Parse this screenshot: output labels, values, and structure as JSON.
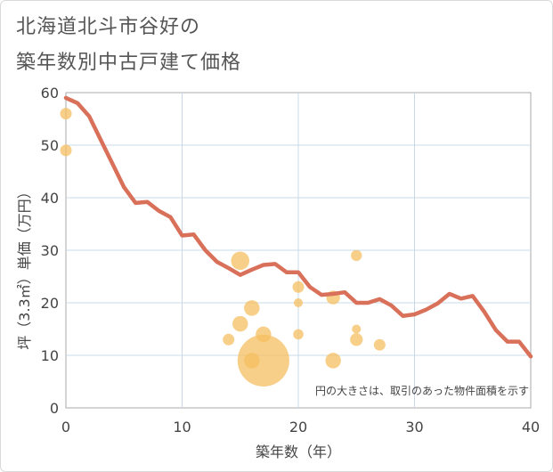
{
  "title_line1": "北海道北斗市谷好の",
  "title_line2": "築年数別中古戸建て価格",
  "chart_data": {
    "type": "scatter",
    "title": "北海道北斗市谷好の 築年数別中古戸建て価格",
    "xlabel": "築年数（年）",
    "ylabel": "坪（3.3㎡）単価（万円）",
    "note": "円の大きさは、取引のあった物件面積を示す",
    "xlim": [
      0,
      40
    ],
    "ylim": [
      0,
      60
    ],
    "xticks": [
      "0",
      "10",
      "20",
      "30",
      "40"
    ],
    "yticks": [
      "0",
      "10",
      "20",
      "30",
      "40",
      "50",
      "60"
    ],
    "grid": true,
    "colors": {
      "line": "#d9705a",
      "bubble": "#f5bf60",
      "grid": "#c8d8e8"
    },
    "line": {
      "x": [
        0,
        1,
        2,
        3,
        4,
        5,
        6,
        7,
        8,
        9,
        10,
        11,
        12,
        13,
        14,
        15,
        16,
        17,
        18,
        19,
        20,
        21,
        22,
        23,
        24,
        25,
        26,
        27,
        28,
        29,
        30,
        31,
        32,
        33,
        34,
        35,
        36,
        37,
        38,
        39,
        40
      ],
      "y": [
        59,
        58,
        55.5,
        51,
        46.5,
        42,
        39,
        39.2,
        37.5,
        36.3,
        32.8,
        33,
        30,
        27.8,
        26.6,
        25.3,
        26.3,
        27.2,
        27.4,
        25.8,
        25.8,
        23,
        21.5,
        21.7,
        22,
        20,
        20,
        20.7,
        19.5,
        17.5,
        17.8,
        18.7,
        19.9,
        21.7,
        20.8,
        21.3,
        18.3,
        14.8,
        12.6,
        12.6,
        9.8
      ]
    },
    "bubbles": [
      {
        "x": 0,
        "y": 56,
        "size": 1
      },
      {
        "x": 0,
        "y": 49,
        "size": 1
      },
      {
        "x": 14,
        "y": 13,
        "size": 1
      },
      {
        "x": 15,
        "y": 28,
        "size": 2.5
      },
      {
        "x": 15,
        "y": 16,
        "size": 1.8
      },
      {
        "x": 16,
        "y": 19,
        "size": 1.8
      },
      {
        "x": 16,
        "y": 9,
        "size": 1.8
      },
      {
        "x": 17,
        "y": 14,
        "size": 1.8
      },
      {
        "x": 17,
        "y": 9,
        "size": 20
      },
      {
        "x": 20,
        "y": 23,
        "size": 1
      },
      {
        "x": 20,
        "y": 20,
        "size": 0.6
      },
      {
        "x": 20,
        "y": 14,
        "size": 0.8
      },
      {
        "x": 23,
        "y": 21,
        "size": 1.4
      },
      {
        "x": 23,
        "y": 9,
        "size": 1.8
      },
      {
        "x": 25,
        "y": 29,
        "size": 0.9
      },
      {
        "x": 25,
        "y": 15,
        "size": 0.6
      },
      {
        "x": 25,
        "y": 13,
        "size": 1.2
      },
      {
        "x": 27,
        "y": 12,
        "size": 1
      }
    ]
  }
}
